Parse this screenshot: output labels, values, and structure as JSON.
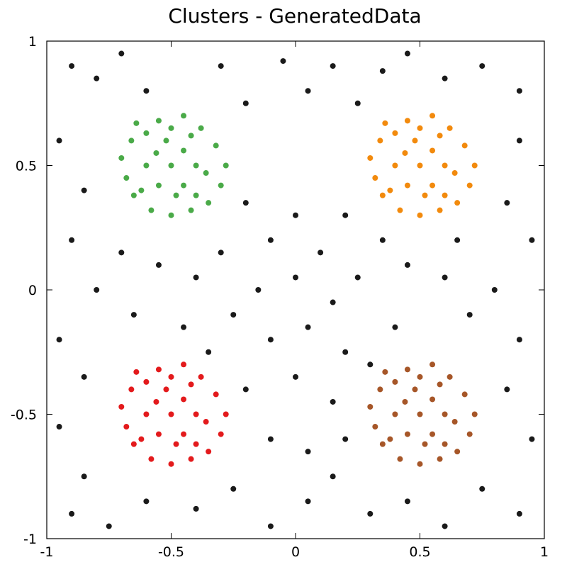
{
  "chart_data": {
    "type": "scatter",
    "title": "Clusters - GeneratedData",
    "xlabel": "",
    "ylabel": "",
    "xlim": [
      -1,
      1
    ],
    "ylim": [
      -1,
      1
    ],
    "xticks": [
      -1,
      -0.5,
      0,
      0.5,
      1
    ],
    "yticks": [
      -1,
      -0.5,
      0,
      0.5,
      1
    ],
    "xtick_labels": [
      "-1",
      "-0.5",
      "0",
      "0.5",
      "1"
    ],
    "ytick_labels": [
      "-1",
      "-0.5",
      "0",
      "0.5",
      "1"
    ],
    "grid": false,
    "legend": "none",
    "series": [
      {
        "color": "#4aaa48",
        "points": [
          [
            -0.5,
            0.5
          ],
          [
            -0.6,
            0.63
          ],
          [
            -0.55,
            0.68
          ],
          [
            -0.45,
            0.7
          ],
          [
            -0.38,
            0.65
          ],
          [
            -0.32,
            0.58
          ],
          [
            -0.28,
            0.5
          ],
          [
            -0.3,
            0.42
          ],
          [
            -0.35,
            0.35
          ],
          [
            -0.42,
            0.32
          ],
          [
            -0.5,
            0.3
          ],
          [
            -0.58,
            0.32
          ],
          [
            -0.65,
            0.38
          ],
          [
            -0.68,
            0.45
          ],
          [
            -0.7,
            0.53
          ],
          [
            -0.66,
            0.6
          ],
          [
            -0.52,
            0.6
          ],
          [
            -0.45,
            0.56
          ],
          [
            -0.4,
            0.5
          ],
          [
            -0.45,
            0.42
          ],
          [
            -0.55,
            0.42
          ],
          [
            -0.6,
            0.5
          ],
          [
            -0.5,
            0.65
          ],
          [
            -0.42,
            0.62
          ],
          [
            -0.36,
            0.47
          ],
          [
            -0.62,
            0.4
          ],
          [
            -0.48,
            0.38
          ],
          [
            -0.56,
            0.55
          ],
          [
            -0.4,
            0.38
          ],
          [
            -0.64,
            0.67
          ]
        ]
      },
      {
        "color": "#f28a0d",
        "points": [
          [
            0.5,
            0.5
          ],
          [
            0.4,
            0.63
          ],
          [
            0.45,
            0.68
          ],
          [
            0.55,
            0.7
          ],
          [
            0.62,
            0.65
          ],
          [
            0.68,
            0.58
          ],
          [
            0.72,
            0.5
          ],
          [
            0.7,
            0.42
          ],
          [
            0.65,
            0.35
          ],
          [
            0.58,
            0.32
          ],
          [
            0.5,
            0.3
          ],
          [
            0.42,
            0.32
          ],
          [
            0.35,
            0.38
          ],
          [
            0.32,
            0.45
          ],
          [
            0.3,
            0.53
          ],
          [
            0.34,
            0.6
          ],
          [
            0.48,
            0.6
          ],
          [
            0.55,
            0.56
          ],
          [
            0.6,
            0.5
          ],
          [
            0.55,
            0.42
          ],
          [
            0.45,
            0.42
          ],
          [
            0.4,
            0.5
          ],
          [
            0.5,
            0.65
          ],
          [
            0.58,
            0.62
          ],
          [
            0.64,
            0.47
          ],
          [
            0.38,
            0.4
          ],
          [
            0.52,
            0.38
          ],
          [
            0.44,
            0.55
          ],
          [
            0.6,
            0.38
          ],
          [
            0.36,
            0.67
          ]
        ]
      },
      {
        "color": "#e31a1c",
        "points": [
          [
            -0.5,
            -0.5
          ],
          [
            -0.6,
            -0.37
          ],
          [
            -0.55,
            -0.32
          ],
          [
            -0.45,
            -0.3
          ],
          [
            -0.38,
            -0.35
          ],
          [
            -0.32,
            -0.42
          ],
          [
            -0.28,
            -0.5
          ],
          [
            -0.3,
            -0.58
          ],
          [
            -0.35,
            -0.65
          ],
          [
            -0.42,
            -0.68
          ],
          [
            -0.5,
            -0.7
          ],
          [
            -0.58,
            -0.68
          ],
          [
            -0.65,
            -0.62
          ],
          [
            -0.68,
            -0.55
          ],
          [
            -0.7,
            -0.47
          ],
          [
            -0.66,
            -0.4
          ],
          [
            -0.52,
            -0.4
          ],
          [
            -0.45,
            -0.44
          ],
          [
            -0.4,
            -0.5
          ],
          [
            -0.45,
            -0.58
          ],
          [
            -0.55,
            -0.58
          ],
          [
            -0.6,
            -0.5
          ],
          [
            -0.5,
            -0.35
          ],
          [
            -0.42,
            -0.38
          ],
          [
            -0.36,
            -0.53
          ],
          [
            -0.62,
            -0.6
          ],
          [
            -0.48,
            -0.62
          ],
          [
            -0.56,
            -0.45
          ],
          [
            -0.4,
            -0.62
          ],
          [
            -0.64,
            -0.33
          ]
        ]
      },
      {
        "color": "#a65628",
        "points": [
          [
            0.5,
            -0.5
          ],
          [
            0.4,
            -0.37
          ],
          [
            0.45,
            -0.32
          ],
          [
            0.55,
            -0.3
          ],
          [
            0.62,
            -0.35
          ],
          [
            0.68,
            -0.42
          ],
          [
            0.72,
            -0.5
          ],
          [
            0.7,
            -0.58
          ],
          [
            0.65,
            -0.65
          ],
          [
            0.58,
            -0.68
          ],
          [
            0.5,
            -0.7
          ],
          [
            0.42,
            -0.68
          ],
          [
            0.35,
            -0.62
          ],
          [
            0.32,
            -0.55
          ],
          [
            0.3,
            -0.47
          ],
          [
            0.34,
            -0.4
          ],
          [
            0.48,
            -0.4
          ],
          [
            0.55,
            -0.44
          ],
          [
            0.6,
            -0.5
          ],
          [
            0.55,
            -0.58
          ],
          [
            0.45,
            -0.58
          ],
          [
            0.4,
            -0.5
          ],
          [
            0.5,
            -0.35
          ],
          [
            0.58,
            -0.38
          ],
          [
            0.64,
            -0.53
          ],
          [
            0.38,
            -0.6
          ],
          [
            0.52,
            -0.62
          ],
          [
            0.44,
            -0.45
          ],
          [
            0.6,
            -0.62
          ],
          [
            0.36,
            -0.33
          ]
        ]
      },
      {
        "color": "#1a1a1a",
        "points": [
          [
            -0.9,
            0.9
          ],
          [
            -0.8,
            0.85
          ],
          [
            -0.7,
            0.95
          ],
          [
            -0.6,
            0.8
          ],
          [
            -0.3,
            0.9
          ],
          [
            -0.2,
            0.75
          ],
          [
            -0.05,
            0.92
          ],
          [
            0.05,
            0.8
          ],
          [
            0.15,
            0.9
          ],
          [
            0.25,
            0.75
          ],
          [
            0.35,
            0.88
          ],
          [
            0.45,
            0.95
          ],
          [
            0.6,
            0.85
          ],
          [
            0.75,
            0.9
          ],
          [
            0.9,
            0.8
          ],
          [
            -0.95,
            0.6
          ],
          [
            -0.85,
            0.4
          ],
          [
            -0.9,
            0.2
          ],
          [
            -0.8,
            0.0
          ],
          [
            -0.95,
            -0.2
          ],
          [
            -0.85,
            -0.35
          ],
          [
            -0.95,
            -0.55
          ],
          [
            -0.85,
            -0.75
          ],
          [
            -0.9,
            -0.9
          ],
          [
            -0.75,
            -0.95
          ],
          [
            -0.6,
            -0.85
          ],
          [
            -0.4,
            -0.88
          ],
          [
            -0.25,
            -0.8
          ],
          [
            -0.1,
            -0.95
          ],
          [
            0.05,
            -0.85
          ],
          [
            0.15,
            -0.75
          ],
          [
            0.3,
            -0.9
          ],
          [
            0.45,
            -0.85
          ],
          [
            0.6,
            -0.95
          ],
          [
            0.75,
            -0.8
          ],
          [
            0.9,
            -0.9
          ],
          [
            0.95,
            -0.6
          ],
          [
            0.85,
            -0.4
          ],
          [
            0.9,
            -0.2
          ],
          [
            0.8,
            0.0
          ],
          [
            0.95,
            0.2
          ],
          [
            0.85,
            0.35
          ],
          [
            0.9,
            0.6
          ],
          [
            -0.2,
            0.35
          ],
          [
            -0.1,
            0.2
          ],
          [
            0.0,
            0.3
          ],
          [
            0.1,
            0.15
          ],
          [
            0.2,
            0.3
          ],
          [
            -0.15,
            0.0
          ],
          [
            0.0,
            0.05
          ],
          [
            0.15,
            -0.05
          ],
          [
            0.25,
            0.05
          ],
          [
            -0.25,
            -0.1
          ],
          [
            -0.1,
            -0.2
          ],
          [
            0.05,
            -0.15
          ],
          [
            0.2,
            -0.25
          ],
          [
            -0.2,
            -0.4
          ],
          [
            0.0,
            -0.35
          ],
          [
            0.15,
            -0.45
          ],
          [
            -0.1,
            -0.6
          ],
          [
            0.05,
            -0.65
          ],
          [
            0.2,
            -0.6
          ],
          [
            -0.55,
            0.1
          ],
          [
            -0.4,
            0.05
          ],
          [
            -0.65,
            -0.1
          ],
          [
            -0.45,
            -0.15
          ],
          [
            0.45,
            0.1
          ],
          [
            0.6,
            0.05
          ],
          [
            0.7,
            -0.1
          ],
          [
            0.4,
            -0.15
          ],
          [
            -0.3,
            0.15
          ],
          [
            0.3,
            -0.3
          ],
          [
            -0.7,
            0.15
          ],
          [
            0.65,
            0.2
          ],
          [
            -0.35,
            -0.25
          ],
          [
            0.35,
            0.2
          ]
        ]
      }
    ]
  }
}
